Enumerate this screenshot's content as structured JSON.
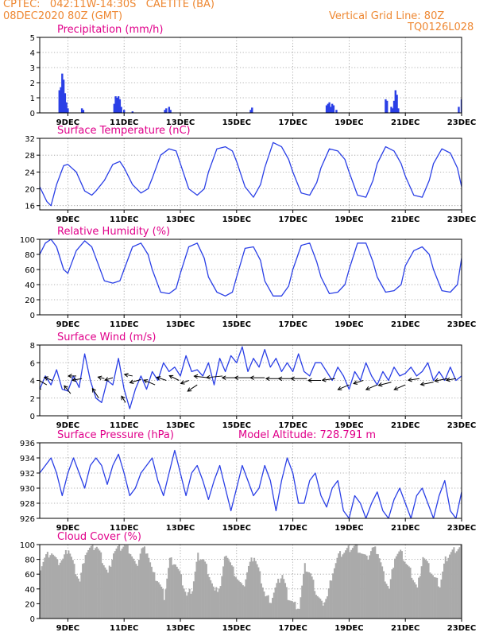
{
  "header": {
    "line1": "CPTEC:   042:11W-14:30S   CAETITE (BA)",
    "line2": "08DEC2020 80Z (GMT)",
    "right1": "Vertical Grid Line: 80Z",
    "right2": "TQ0126L028"
  },
  "colors": {
    "orange_header": "#ee8833",
    "title_magenta": "#e0008a",
    "series_blue": "#2a3fe6",
    "cloud_gray": "#aaaaaa",
    "wind_arrow": "#000000"
  },
  "chart_data": [
    {
      "type": "bar",
      "title": "Precipitation (mm/h)",
      "x_ticks": [
        "9DEC",
        "11DEC",
        "13DEC",
        "15DEC",
        "17DEC",
        "19DEC",
        "21DEC",
        "23DEC"
      ],
      "ylim": [
        0,
        5
      ],
      "y_ticks": [
        "0",
        "1",
        "2",
        "3",
        "4",
        "5"
      ],
      "grid": true,
      "series": [
        {
          "x_days": [
            8.7,
            8.75,
            8.8,
            8.85,
            8.9,
            8.95,
            9.0,
            9.5,
            9.55,
            10.65,
            10.7,
            10.75,
            10.8,
            10.85,
            10.9,
            11.0,
            11.3,
            12.45,
            12.5,
            12.6,
            12.65,
            15.5,
            15.55,
            18.2,
            18.25,
            18.3,
            18.35,
            18.4,
            18.45,
            18.55,
            20.3,
            20.35,
            20.5,
            20.55,
            20.6,
            20.65,
            20.7,
            20.75,
            22.9,
            23.0
          ],
          "values": [
            1.5,
            1.7,
            2.6,
            2.2,
            1.3,
            0.7,
            0.3,
            0.3,
            0.2,
            0.6,
            1.1,
            1.0,
            1.1,
            0.9,
            0.4,
            0.2,
            0.1,
            0.2,
            0.3,
            0.4,
            0.2,
            0.2,
            0.35,
            0.5,
            0.6,
            0.7,
            0.4,
            0.6,
            0.5,
            0.2,
            0.9,
            0.8,
            0.4,
            0.3,
            0.8,
            1.5,
            1.2,
            0.3,
            0.4,
            0.9
          ]
        }
      ]
    },
    {
      "type": "line",
      "title": "Surface Temperature (nC)",
      "x_ticks": [
        "9DEC",
        "11DEC",
        "13DEC",
        "15DEC",
        "17DEC",
        "19DEC",
        "21DEC",
        "23DEC"
      ],
      "ylim": [
        15,
        32
      ],
      "y_ticks": [
        "16",
        "20",
        "24",
        "28",
        "32"
      ],
      "grid": true,
      "series": [
        {
          "x_days": [
            8.0,
            8.25,
            8.4,
            8.6,
            8.85,
            9.0,
            9.3,
            9.6,
            9.85,
            10.0,
            10.3,
            10.6,
            10.85,
            11.0,
            11.3,
            11.6,
            11.85,
            12.0,
            12.3,
            12.6,
            12.85,
            13.0,
            13.3,
            13.6,
            13.85,
            14.0,
            14.3,
            14.6,
            14.85,
            15.0,
            15.3,
            15.6,
            15.85,
            16.0,
            16.3,
            16.6,
            16.85,
            17.0,
            17.3,
            17.6,
            17.85,
            18.0,
            18.3,
            18.6,
            18.85,
            19.0,
            19.3,
            19.6,
            19.85,
            20.0,
            20.3,
            20.6,
            20.85,
            21.0,
            21.3,
            21.6,
            21.85,
            22.0,
            22.3,
            22.6,
            22.85,
            23.0
          ],
          "values": [
            20.5,
            17.0,
            16.0,
            21.0,
            25.5,
            25.8,
            24.0,
            19.5,
            18.5,
            19.5,
            22.0,
            25.8,
            26.5,
            25.0,
            21.0,
            19.0,
            20.0,
            22.5,
            28.0,
            29.5,
            29.0,
            26.0,
            20.0,
            18.5,
            20.0,
            24.0,
            29.5,
            30.0,
            29.0,
            26.5,
            20.5,
            18.0,
            21.0,
            25.0,
            31.0,
            30.0,
            27.0,
            24.0,
            19.0,
            18.5,
            21.5,
            25.0,
            29.5,
            29.0,
            27.0,
            24.0,
            18.5,
            18.0,
            22.0,
            26.0,
            30.0,
            29.0,
            26.0,
            23.0,
            18.5,
            18.0,
            22.0,
            26.0,
            29.5,
            28.5,
            25.0,
            20.5
          ]
        }
      ]
    },
    {
      "type": "line",
      "title": "Relative Humidity (%)",
      "x_ticks": [
        "9DEC",
        "11DEC",
        "13DEC",
        "15DEC",
        "17DEC",
        "19DEC",
        "21DEC",
        "23DEC"
      ],
      "ylim": [
        0,
        100
      ],
      "y_ticks": [
        "0",
        "20",
        "40",
        "60",
        "80",
        "100"
      ],
      "grid": true,
      "series": [
        {
          "x_days": [
            8.0,
            8.2,
            8.4,
            8.6,
            8.85,
            9.0,
            9.3,
            9.6,
            9.85,
            10.0,
            10.3,
            10.6,
            10.85,
            11.0,
            11.3,
            11.6,
            11.85,
            12.0,
            12.3,
            12.6,
            12.85,
            13.0,
            13.3,
            13.6,
            13.85,
            14.0,
            14.3,
            14.6,
            14.85,
            15.0,
            15.3,
            15.6,
            15.85,
            16.0,
            16.3,
            16.6,
            16.85,
            17.0,
            17.3,
            17.6,
            17.85,
            18.0,
            18.3,
            18.6,
            18.85,
            19.0,
            19.3,
            19.6,
            19.85,
            20.0,
            20.3,
            20.6,
            20.85,
            21.0,
            21.3,
            21.6,
            21.85,
            22.0,
            22.3,
            22.6,
            22.85,
            23.0
          ],
          "values": [
            80,
            95,
            100,
            90,
            60,
            55,
            85,
            98,
            90,
            75,
            45,
            42,
            45,
            60,
            90,
            95,
            80,
            60,
            30,
            28,
            35,
            55,
            90,
            95,
            75,
            50,
            30,
            25,
            30,
            50,
            88,
            90,
            72,
            45,
            25,
            25,
            38,
            60,
            92,
            95,
            70,
            50,
            28,
            30,
            40,
            60,
            95,
            95,
            70,
            50,
            30,
            32,
            40,
            65,
            85,
            90,
            80,
            60,
            32,
            30,
            40,
            75
          ]
        }
      ]
    },
    {
      "type": "line",
      "title": "Surface Wind (m/s)",
      "x_ticks": [
        "9DEC",
        "11DEC",
        "13DEC",
        "15DEC",
        "17DEC",
        "19DEC",
        "21DEC",
        "23DEC"
      ],
      "ylim": [
        0,
        8
      ],
      "y_ticks": [
        "0",
        "2",
        "4",
        "6",
        "8"
      ],
      "grid": true,
      "series": [
        {
          "x_days": [
            8.0,
            8.2,
            8.4,
            8.6,
            8.8,
            9.0,
            9.2,
            9.4,
            9.6,
            9.8,
            10.0,
            10.2,
            10.4,
            10.6,
            10.8,
            11.0,
            11.2,
            11.4,
            11.6,
            11.8,
            12.0,
            12.2,
            12.4,
            12.6,
            12.8,
            13.0,
            13.2,
            13.4,
            13.6,
            13.8,
            14.0,
            14.2,
            14.4,
            14.6,
            14.8,
            15.0,
            15.2,
            15.4,
            15.6,
            15.8,
            16.0,
            16.2,
            16.4,
            16.6,
            16.8,
            17.0,
            17.2,
            17.4,
            17.6,
            17.8,
            18.0,
            18.2,
            18.4,
            18.6,
            18.8,
            19.0,
            19.2,
            19.4,
            19.6,
            19.8,
            20.0,
            20.2,
            20.4,
            20.6,
            20.8,
            21.0,
            21.2,
            21.4,
            21.6,
            21.8,
            22.0,
            22.2,
            22.4,
            22.6,
            22.8,
            23.0
          ],
          "values": [
            3.0,
            4.5,
            3.5,
            5.2,
            3.0,
            2.8,
            4.5,
            3.2,
            7.0,
            4.0,
            2.0,
            1.5,
            4.0,
            3.5,
            6.5,
            3.0,
            0.8,
            3.0,
            4.5,
            3.0,
            5.0,
            4.0,
            6.0,
            5.0,
            5.5,
            4.5,
            6.8,
            5.0,
            5.2,
            4.5,
            6.0,
            3.5,
            6.5,
            5.0,
            6.8,
            6.0,
            7.8,
            5.0,
            6.5,
            5.5,
            7.5,
            5.5,
            6.5,
            5.0,
            6.0,
            5.0,
            7.0,
            5.0,
            4.5,
            6.0,
            6.0,
            5.0,
            4.0,
            5.5,
            4.5,
            3.0,
            5.0,
            4.0,
            6.0,
            4.5,
            3.5,
            5.0,
            4.0,
            5.5,
            4.5,
            4.8,
            5.5,
            4.5,
            5.0,
            6.0,
            4.0,
            5.0,
            4.0,
            5.5,
            4.0,
            4.5
          ]
        }
      ],
      "wind_arrows": {
        "x_days": [
          8.05,
          8.25,
          8.45,
          9.1,
          9.3,
          9.5,
          10.1,
          10.3,
          10.6,
          11.05,
          11.3,
          11.6,
          12.1,
          12.5,
          12.95,
          13.3,
          13.6,
          14.0,
          14.5,
          15.0,
          15.5,
          16.0,
          16.5,
          17.0,
          17.5,
          18.0,
          18.5,
          19.0,
          19.5,
          20.0,
          20.5,
          21.0,
          21.5,
          22.0,
          22.5,
          22.8
        ],
        "values": [
          3.0,
          3.5,
          4.0,
          2.5,
          4.5,
          4.2,
          2.0,
          4.2,
          4.3,
          1.5,
          4.5,
          4.1,
          3.5,
          4.0,
          4.0,
          4.0,
          3.5,
          4.3,
          4.5,
          4.3,
          4.3,
          4.3,
          4.2,
          4.2,
          4.2,
          4.0,
          4.2,
          3.5,
          4.0,
          3.5,
          3.8,
          3.5,
          4.2,
          3.8,
          4.2,
          4.2
        ],
        "dx": [
          12,
          14,
          10,
          8,
          10,
          12,
          8,
          8,
          10,
          5,
          10,
          14,
          14,
          12,
          12,
          10,
          12,
          18,
          20,
          18,
          20,
          18,
          16,
          18,
          20,
          16,
          16,
          14,
          12,
          14,
          16,
          14,
          14,
          16,
          16,
          12
        ],
        "dy": [
          -6,
          -8,
          -4,
          -10,
          0,
          2,
          -12,
          -2,
          3,
          -8,
          -2,
          4,
          -6,
          -4,
          -6,
          4,
          8,
          -2,
          2,
          0,
          0,
          0,
          0,
          0,
          0,
          0,
          2,
          6,
          4,
          6,
          4,
          6,
          2,
          3,
          3,
          2
        ]
      }
    },
    {
      "type": "line",
      "title": "Surface Pressure (hPa)",
      "annotation": "Model Altitude: 728.791 m",
      "x_ticks": [
        "9DEC",
        "11DEC",
        "13DEC",
        "15DEC",
        "17DEC",
        "19DEC",
        "21DEC",
        "23DEC"
      ],
      "ylim": [
        926,
        936
      ],
      "y_ticks": [
        "926",
        "928",
        "930",
        "932",
        "934",
        "936"
      ],
      "grid": true,
      "series": [
        {
          "x_days": [
            8.0,
            8.2,
            8.4,
            8.6,
            8.8,
            9.0,
            9.2,
            9.4,
            9.6,
            9.8,
            10.0,
            10.2,
            10.4,
            10.6,
            10.8,
            11.0,
            11.2,
            11.4,
            11.6,
            11.8,
            12.0,
            12.2,
            12.4,
            12.6,
            12.8,
            13.0,
            13.2,
            13.4,
            13.6,
            13.8,
            14.0,
            14.2,
            14.4,
            14.6,
            14.8,
            15.0,
            15.2,
            15.4,
            15.6,
            15.8,
            16.0,
            16.2,
            16.4,
            16.6,
            16.8,
            17.0,
            17.2,
            17.4,
            17.6,
            17.8,
            18.0,
            18.2,
            18.4,
            18.6,
            18.8,
            19.0,
            19.2,
            19.4,
            19.6,
            19.8,
            20.0,
            20.2,
            20.4,
            20.6,
            20.8,
            21.0,
            21.2,
            21.4,
            21.6,
            21.8,
            22.0,
            22.2,
            22.4,
            22.6,
            22.8,
            23.0
          ],
          "values": [
            932,
            933,
            934,
            932,
            929,
            932,
            934,
            932,
            930,
            933,
            934,
            933,
            930.5,
            933,
            934.5,
            932,
            929,
            930,
            932,
            933,
            934,
            931,
            929,
            932,
            935,
            932,
            929,
            932,
            933,
            931,
            928.5,
            931,
            933,
            930,
            927,
            930,
            933,
            931,
            929,
            930,
            933,
            931,
            927,
            931,
            934,
            932,
            928,
            928,
            931,
            932,
            929,
            927.5,
            930,
            931,
            927,
            926,
            929,
            928,
            926,
            928,
            929.5,
            927,
            926,
            928.5,
            930,
            928,
            926,
            929,
            930,
            928,
            926,
            929,
            931,
            927,
            926,
            929.5
          ]
        }
      ]
    },
    {
      "type": "area",
      "title": "Cloud Cover (%)",
      "x_ticks": [
        "9DEC",
        "11DEC",
        "13DEC",
        "15DEC",
        "17DEC",
        "19DEC",
        "21DEC",
        "23DEC"
      ],
      "ylim": [
        0,
        100
      ],
      "y_ticks": [
        "0",
        "20",
        "40",
        "60",
        "80",
        "100"
      ],
      "grid": true,
      "series": [
        {
          "x_days": [
            8.0,
            8.2,
            8.4,
            8.6,
            8.8,
            9.0,
            9.2,
            9.4,
            9.6,
            9.8,
            10.0,
            10.2,
            10.4,
            10.6,
            10.8,
            11.0,
            11.2,
            11.4,
            11.6,
            11.8,
            12.0,
            12.2,
            12.4,
            12.6,
            12.8,
            13.0,
            13.2,
            13.4,
            13.6,
            13.8,
            14.0,
            14.2,
            14.4,
            14.6,
            14.8,
            15.0,
            15.2,
            15.4,
            15.6,
            15.8,
            16.0,
            16.2,
            16.4,
            16.6,
            16.8,
            17.0,
            17.2,
            17.4,
            17.6,
            17.8,
            18.0,
            18.2,
            18.4,
            18.6,
            18.8,
            19.0,
            19.2,
            19.4,
            19.6,
            19.8,
            20.0,
            20.2,
            20.4,
            20.6,
            20.8,
            21.0,
            21.2,
            21.4,
            21.6,
            21.8,
            22.0,
            22.2,
            22.4,
            22.6,
            22.8,
            23.0
          ],
          "values": [
            70,
            85,
            90,
            75,
            80,
            95,
            70,
            50,
            90,
            95,
            98,
            80,
            60,
            90,
            95,
            98,
            90,
            70,
            95,
            92,
            60,
            50,
            30,
            80,
            75,
            55,
            30,
            40,
            85,
            80,
            60,
            35,
            45,
            90,
            70,
            55,
            40,
            70,
            85,
            60,
            30,
            25,
            45,
            60,
            30,
            20,
            15,
            70,
            60,
            35,
            20,
            30,
            65,
            85,
            90,
            95,
            98,
            90,
            80,
            95,
            90,
            60,
            40,
            85,
            90,
            75,
            60,
            40,
            85,
            70,
            55,
            45,
            80,
            90,
            95,
            98
          ]
        }
      ]
    }
  ]
}
